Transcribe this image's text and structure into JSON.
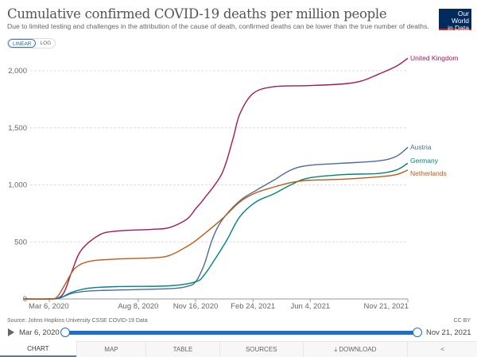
{
  "header": {
    "title": "Cumulative confirmed COVID-19 deaths per million people",
    "subtitle": "Due to limited testing and challenges in the attribution of the cause of death, confirmed deaths can be lower than the true number of deaths.",
    "logo": "Our World in Data"
  },
  "scale_toggle": {
    "linear": "LINEAR",
    "log": "LOG",
    "selected": "LINEAR"
  },
  "chart_data": {
    "type": "line",
    "title": "Cumulative confirmed COVID-19 deaths per million people",
    "ylim": [
      0,
      2100
    ],
    "xlim": [
      "2020-01-22",
      "2021-11-21"
    ],
    "yticks": [
      "0",
      "500",
      "1,000",
      "1,500",
      "2,000"
    ],
    "ytick_values": [
      0,
      500,
      1000,
      1500,
      2000
    ],
    "xticks": [
      {
        "date": "2020-03-06",
        "label": "Mar 6, 2020"
      },
      {
        "date": "2020-08-08",
        "label": "Aug 8, 2020"
      },
      {
        "date": "2020-11-16",
        "label": "Nov 16, 2020"
      },
      {
        "date": "2021-02-24",
        "label": "Feb 24, 2021"
      },
      {
        "date": "2021-06-04",
        "label": "Jun 4, 2021"
      },
      {
        "date": "2021-11-21",
        "label": "Nov 21, 2021"
      }
    ],
    "grid": true,
    "legend": "inline-right",
    "series": [
      {
        "name": "United Kingdom",
        "color": "#a2185b",
        "points": [
          [
            "2020-01-22",
            0
          ],
          [
            "2020-03-06",
            0
          ],
          [
            "2020-03-20",
            5
          ],
          [
            "2020-04-01",
            60
          ],
          [
            "2020-04-15",
            250
          ],
          [
            "2020-05-01",
            430
          ],
          [
            "2020-06-01",
            560
          ],
          [
            "2020-07-01",
            595
          ],
          [
            "2020-09-01",
            610
          ],
          [
            "2020-10-01",
            625
          ],
          [
            "2020-11-01",
            700
          ],
          [
            "2020-11-16",
            790
          ],
          [
            "2020-12-01",
            880
          ],
          [
            "2021-01-01",
            1100
          ],
          [
            "2021-01-20",
            1400
          ],
          [
            "2021-02-01",
            1620
          ],
          [
            "2021-02-24",
            1800
          ],
          [
            "2021-04-01",
            1860
          ],
          [
            "2021-06-01",
            1870
          ],
          [
            "2021-08-01",
            1885
          ],
          [
            "2021-09-01",
            1910
          ],
          [
            "2021-10-01",
            1970
          ],
          [
            "2021-11-01",
            2040
          ],
          [
            "2021-11-21",
            2110
          ]
        ]
      },
      {
        "name": "Austria",
        "color": "#4c6a9c",
        "points": [
          [
            "2020-01-22",
            0
          ],
          [
            "2020-03-06",
            0
          ],
          [
            "2020-03-25",
            10
          ],
          [
            "2020-04-15",
            50
          ],
          [
            "2020-05-15",
            70
          ],
          [
            "2020-07-01",
            78
          ],
          [
            "2020-10-01",
            90
          ],
          [
            "2020-11-01",
            110
          ],
          [
            "2020-11-16",
            150
          ],
          [
            "2020-12-01",
            300
          ],
          [
            "2020-12-15",
            520
          ],
          [
            "2021-01-01",
            690
          ],
          [
            "2021-02-01",
            860
          ],
          [
            "2021-03-01",
            950
          ],
          [
            "2021-04-01",
            1040
          ],
          [
            "2021-05-01",
            1130
          ],
          [
            "2021-06-01",
            1170
          ],
          [
            "2021-08-01",
            1190
          ],
          [
            "2021-10-01",
            1210
          ],
          [
            "2021-11-01",
            1250
          ],
          [
            "2021-11-21",
            1330
          ]
        ]
      },
      {
        "name": "Germany",
        "color": "#00847e",
        "points": [
          [
            "2020-01-22",
            0
          ],
          [
            "2020-03-06",
            0
          ],
          [
            "2020-03-25",
            10
          ],
          [
            "2020-04-15",
            60
          ],
          [
            "2020-05-15",
            95
          ],
          [
            "2020-07-01",
            108
          ],
          [
            "2020-10-01",
            115
          ],
          [
            "2020-11-16",
            150
          ],
          [
            "2020-12-01",
            210
          ],
          [
            "2020-12-20",
            350
          ],
          [
            "2021-01-10",
            520
          ],
          [
            "2021-02-01",
            720
          ],
          [
            "2021-03-01",
            850
          ],
          [
            "2021-04-01",
            920
          ],
          [
            "2021-05-01",
            1000
          ],
          [
            "2021-06-01",
            1060
          ],
          [
            "2021-08-01",
            1090
          ],
          [
            "2021-10-01",
            1100
          ],
          [
            "2021-11-01",
            1130
          ],
          [
            "2021-11-21",
            1190
          ]
        ]
      },
      {
        "name": "Netherlands",
        "color": "#c05917",
        "points": [
          [
            "2020-01-22",
            0
          ],
          [
            "2020-03-06",
            0
          ],
          [
            "2020-03-20",
            20
          ],
          [
            "2020-04-05",
            150
          ],
          [
            "2020-04-20",
            270
          ],
          [
            "2020-05-15",
            330
          ],
          [
            "2020-07-01",
            350
          ],
          [
            "2020-09-01",
            360
          ],
          [
            "2020-10-01",
            380
          ],
          [
            "2020-11-01",
            460
          ],
          [
            "2020-11-16",
            510
          ],
          [
            "2020-12-01",
            570
          ],
          [
            "2021-01-01",
            700
          ],
          [
            "2021-02-01",
            850
          ],
          [
            "2021-03-01",
            930
          ],
          [
            "2021-04-01",
            980
          ],
          [
            "2021-05-01",
            1020
          ],
          [
            "2021-06-01",
            1040
          ],
          [
            "2021-08-01",
            1050
          ],
          [
            "2021-10-01",
            1070
          ],
          [
            "2021-11-01",
            1090
          ],
          [
            "2021-11-21",
            1130
          ]
        ]
      }
    ]
  },
  "footer": {
    "source": "Source: Johns Hopkins University CSSE COVID-19 Data",
    "license": "CC BY"
  },
  "timeline": {
    "start": "Mar 6, 2020",
    "end": "Nov 21, 2021"
  },
  "tabs": [
    {
      "label": "CHART",
      "icon": ""
    },
    {
      "label": "MAP"
    },
    {
      "label": "TABLE"
    },
    {
      "label": "SOURCES"
    },
    {
      "label": "DOWNLOAD",
      "icon": "download-icon"
    },
    {
      "label": "",
      "icon": "share-icon"
    }
  ]
}
